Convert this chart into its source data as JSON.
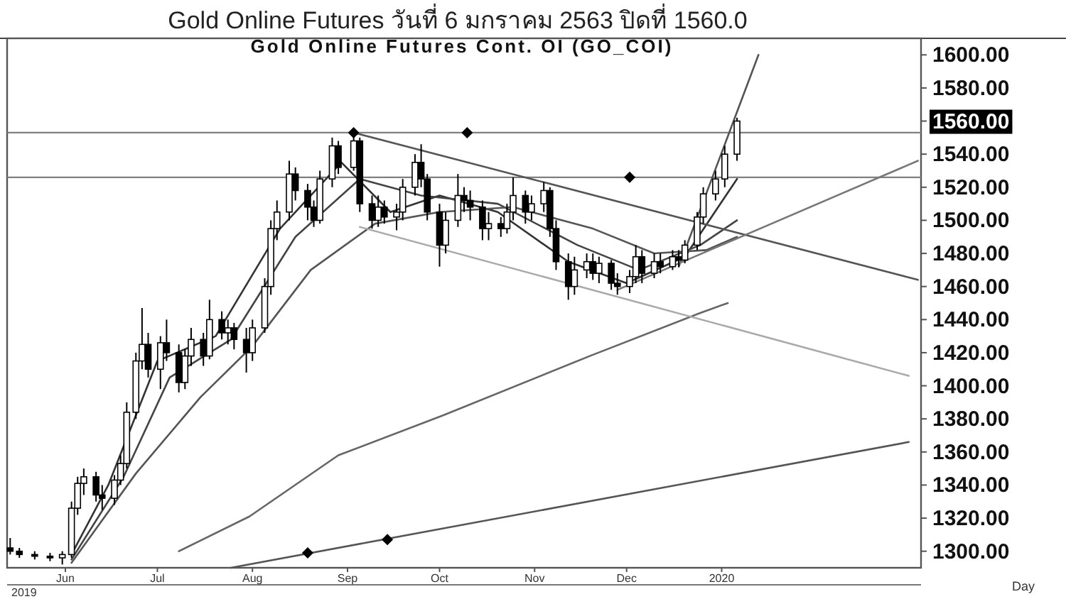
{
  "chart_data": {
    "type": "candlestick",
    "title": "Gold Online Futures วันที่   6 มกราคม   2563 ปิดที่   1560.0",
    "subtitle": "Gold Online Futures Cont. OI (GO_COI)",
    "x": [
      "2019-05-14",
      "2019-05-17",
      "2019-05-22",
      "2019-05-27",
      "2019-05-31",
      "2019-06-03",
      "2019-06-05",
      "2019-06-07",
      "2019-06-11",
      "2019-06-13",
      "2019-06-17",
      "2019-06-19",
      "2019-06-21",
      "2019-06-24",
      "2019-06-26",
      "2019-06-28",
      "2019-07-02",
      "2019-07-04",
      "2019-07-08",
      "2019-07-10",
      "2019-07-12",
      "2019-07-16",
      "2019-07-18",
      "2019-07-22",
      "2019-07-24",
      "2019-07-26",
      "2019-07-30",
      "2019-08-01",
      "2019-08-05",
      "2019-08-07",
      "2019-08-09",
      "2019-08-13",
      "2019-08-15",
      "2019-08-19",
      "2019-08-21",
      "2019-08-23",
      "2019-08-27",
      "2019-08-29",
      "2019-09-03",
      "2019-09-05",
      "2019-09-09",
      "2019-09-11",
      "2019-09-13",
      "2019-09-17",
      "2019-09-19",
      "2019-09-23",
      "2019-09-25",
      "2019-09-27",
      "2019-10-01",
      "2019-10-03",
      "2019-10-07",
      "2019-10-09",
      "2019-10-11",
      "2019-10-15",
      "2019-10-17",
      "2019-10-21",
      "2019-10-23",
      "2019-10-25",
      "2019-10-29",
      "2019-10-31",
      "2019-11-04",
      "2019-11-06",
      "2019-11-08",
      "2019-11-12",
      "2019-11-14",
      "2019-11-18",
      "2019-11-20",
      "2019-11-22",
      "2019-11-26",
      "2019-11-28",
      "2019-12-02",
      "2019-12-04",
      "2019-12-06",
      "2019-12-10",
      "2019-12-12",
      "2019-12-16",
      "2019-12-18",
      "2019-12-20",
      "2019-12-24",
      "2019-12-26",
      "2019-12-30",
      "2020-01-02",
      "2020-01-06"
    ],
    "ohlc": [
      [
        1302,
        1308,
        1298,
        1300
      ],
      [
        1300,
        1302,
        1296,
        1298
      ],
      [
        1298,
        1300,
        1295,
        1297
      ],
      [
        1297,
        1299,
        1294,
        1296
      ],
      [
        1296,
        1300,
        1292,
        1298
      ],
      [
        1298,
        1330,
        1296,
        1326
      ],
      [
        1326,
        1345,
        1322,
        1341
      ],
      [
        1341,
        1350,
        1334,
        1345
      ],
      [
        1345,
        1348,
        1330,
        1334
      ],
      [
        1334,
        1340,
        1325,
        1332
      ],
      [
        1332,
        1346,
        1328,
        1343
      ],
      [
        1343,
        1358,
        1340,
        1353
      ],
      [
        1353,
        1390,
        1350,
        1384
      ],
      [
        1384,
        1420,
        1380,
        1415
      ],
      [
        1415,
        1447,
        1410,
        1425
      ],
      [
        1425,
        1432,
        1405,
        1410
      ],
      [
        1410,
        1430,
        1398,
        1426
      ],
      [
        1426,
        1440,
        1415,
        1420
      ],
      [
        1420,
        1425,
        1396,
        1402
      ],
      [
        1402,
        1422,
        1398,
        1418
      ],
      [
        1418,
        1435,
        1412,
        1428
      ],
      [
        1428,
        1432,
        1412,
        1418
      ],
      [
        1418,
        1452,
        1416,
        1440
      ],
      [
        1440,
        1445,
        1428,
        1432
      ],
      [
        1432,
        1440,
        1425,
        1435
      ],
      [
        1435,
        1438,
        1422,
        1428
      ],
      [
        1428,
        1435,
        1408,
        1420
      ],
      [
        1420,
        1440,
        1415,
        1435
      ],
      [
        1435,
        1465,
        1432,
        1460
      ],
      [
        1460,
        1500,
        1455,
        1495
      ],
      [
        1495,
        1512,
        1488,
        1505
      ],
      [
        1505,
        1536,
        1500,
        1528
      ],
      [
        1528,
        1532,
        1512,
        1518
      ],
      [
        1518,
        1522,
        1500,
        1508
      ],
      [
        1508,
        1512,
        1496,
        1500
      ],
      [
        1500,
        1530,
        1498,
        1525
      ],
      [
        1525,
        1550,
        1520,
        1545
      ],
      [
        1545,
        1548,
        1528,
        1532
      ],
      [
        1532,
        1555,
        1530,
        1548
      ],
      [
        1548,
        1550,
        1505,
        1510
      ],
      [
        1510,
        1515,
        1495,
        1500
      ],
      [
        1500,
        1515,
        1496,
        1508
      ],
      [
        1508,
        1512,
        1498,
        1502
      ],
      [
        1502,
        1510,
        1494,
        1505
      ],
      [
        1505,
        1525,
        1500,
        1520
      ],
      [
        1520,
        1540,
        1515,
        1535
      ],
      [
        1535,
        1546,
        1520,
        1525
      ],
      [
        1525,
        1528,
        1500,
        1505
      ],
      [
        1505,
        1510,
        1472,
        1485
      ],
      [
        1485,
        1505,
        1480,
        1500
      ],
      [
        1500,
        1528,
        1496,
        1515
      ],
      [
        1515,
        1520,
        1505,
        1512
      ],
      [
        1512,
        1518,
        1500,
        1508
      ],
      [
        1508,
        1512,
        1488,
        1495
      ],
      [
        1495,
        1505,
        1488,
        1498
      ],
      [
        1498,
        1502,
        1490,
        1495
      ],
      [
        1495,
        1510,
        1492,
        1505
      ],
      [
        1505,
        1526,
        1500,
        1515
      ],
      [
        1515,
        1518,
        1498,
        1505
      ],
      [
        1505,
        1515,
        1500,
        1510
      ],
      [
        1510,
        1523,
        1505,
        1518
      ],
      [
        1518,
        1520,
        1490,
        1495
      ],
      [
        1495,
        1500,
        1470,
        1475
      ],
      [
        1475,
        1480,
        1452,
        1460
      ],
      [
        1460,
        1478,
        1455,
        1470
      ],
      [
        1470,
        1480,
        1465,
        1475
      ],
      [
        1475,
        1480,
        1464,
        1468
      ],
      [
        1468,
        1478,
        1462,
        1474
      ],
      [
        1474,
        1476,
        1458,
        1462
      ],
      [
        1462,
        1468,
        1455,
        1460
      ],
      [
        1460,
        1470,
        1456,
        1466
      ],
      [
        1466,
        1485,
        1462,
        1478
      ],
      [
        1478,
        1482,
        1462,
        1468
      ],
      [
        1468,
        1480,
        1465,
        1475
      ],
      [
        1475,
        1480,
        1468,
        1472
      ],
      [
        1472,
        1482,
        1470,
        1478
      ],
      [
        1478,
        1482,
        1472,
        1476
      ],
      [
        1476,
        1488,
        1474,
        1485
      ],
      [
        1485,
        1505,
        1482,
        1502
      ],
      [
        1502,
        1520,
        1498,
        1516
      ],
      [
        1516,
        1530,
        1512,
        1525
      ],
      [
        1525,
        1545,
        1520,
        1540
      ],
      [
        1540,
        1562,
        1536,
        1560
      ]
    ],
    "series": [
      {
        "type": "line",
        "color": "#333333",
        "x": [
          "2019-06-03",
          "2019-06-15",
          "2019-07-01",
          "2019-07-20",
          "2019-08-10",
          "2019-08-30",
          "2019-09-15",
          "2019-10-01",
          "2019-10-20",
          "2019-11-12",
          "2019-12-01",
          "2019-12-20",
          "2020-01-06"
        ],
        "values": [
          1298,
          1340,
          1415,
          1430,
          1495,
          1535,
          1505,
          1515,
          1505,
          1475,
          1462,
          1478,
          1525
        ]
      },
      {
        "type": "line",
        "color": "#444444",
        "x": [
          "2019-06-03",
          "2019-06-20",
          "2019-07-05",
          "2019-07-25",
          "2019-08-15",
          "2019-09-05",
          "2019-09-25",
          "2019-10-20",
          "2019-11-15",
          "2019-12-05",
          "2019-12-25",
          "2020-01-06"
        ],
        "values": [
          1295,
          1345,
          1405,
          1428,
          1490,
          1525,
          1515,
          1510,
          1485,
          1470,
          1485,
          1500
        ]
      },
      {
        "type": "line",
        "color": "#555555",
        "x": [
          "2019-06-03",
          "2019-06-24",
          "2019-07-15",
          "2019-08-01",
          "2019-08-20",
          "2019-09-10",
          "2019-10-01",
          "2019-10-25",
          "2019-11-20",
          "2019-12-10",
          "2019-12-27",
          "2020-01-06"
        ],
        "values": [
          1293,
          1347,
          1393,
          1424,
          1470,
          1498,
          1505,
          1508,
          1495,
          1480,
          1482,
          1490
        ]
      },
      {
        "type": "line",
        "color": "#666666",
        "x": [
          "2019-07-08",
          "2019-07-31",
          "2019-08-29",
          "2019-10-02",
          "2019-11-19",
          "2019-12-25",
          "2020-01-03"
        ],
        "values": [
          1300,
          1321,
          1358,
          1382,
          1418,
          1444,
          1450
        ]
      },
      {
        "type": "line",
        "color": "#555555",
        "x": [
          "2019-09-03",
          "2020-03-05"
        ],
        "values": [
          1553,
          1464
        ]
      },
      {
        "type": "line",
        "color": "#aaaaaa",
        "x": [
          "2019-09-05",
          "2020-03-02"
        ],
        "values": [
          1496,
          1406
        ]
      },
      {
        "type": "line",
        "color": "#555555",
        "x": [
          "2019-12-18",
          "2020-01-13"
        ],
        "values": [
          1472,
          1600
        ]
      },
      {
        "type": "line",
        "color": "#777777",
        "x": [
          "2019-11-28",
          "2020-03-05"
        ],
        "values": [
          1458,
          1536
        ]
      },
      {
        "type": "line",
        "color": "#555555",
        "x": [
          "2019-07-25",
          "2020-03-02"
        ],
        "values": [
          1290,
          1366
        ]
      },
      {
        "type": "scatter",
        "marker": "diamond",
        "color": "#000000",
        "x": [
          "2019-09-03",
          "2019-10-10",
          "2019-12-02",
          "2019-08-19",
          "2019-09-14"
        ],
        "values": [
          1553,
          1553,
          1526,
          1299,
          1307
        ]
      }
    ],
    "ref_lines": [
      {
        "axis": "y",
        "value": 1553,
        "color": "#808080"
      },
      {
        "axis": "y",
        "value": 1526,
        "color": "#808080"
      }
    ],
    "xlim": [
      "2019-05-13",
      "2020-03-06"
    ],
    "xticks": [
      {
        "value": "2019-06-01",
        "label": "Jun"
      },
      {
        "value": "2019-07-01",
        "label": "Jul"
      },
      {
        "value": "2019-08-01",
        "label": "Aug"
      },
      {
        "value": "2019-09-01",
        "label": "Sep"
      },
      {
        "value": "2019-10-01",
        "label": "Oct"
      },
      {
        "value": "2019-11-01",
        "label": "Nov"
      },
      {
        "value": "2019-12-01",
        "label": "Dec"
      },
      {
        "value": "2020-01-01",
        "label": "2020"
      }
    ],
    "ylim": [
      1290,
      1610
    ],
    "yticks": [
      {
        "value": 1300,
        "label": "1300.00"
      },
      {
        "value": 1320,
        "label": "1320.00"
      },
      {
        "value": 1340,
        "label": "1340.00"
      },
      {
        "value": 1360,
        "label": "1360.00"
      },
      {
        "value": 1380,
        "label": "1380.00"
      },
      {
        "value": 1400,
        "label": "1400.00"
      },
      {
        "value": 1420,
        "label": "1420.00"
      },
      {
        "value": 1440,
        "label": "1440.00"
      },
      {
        "value": 1460,
        "label": "1460.00"
      },
      {
        "value": 1480,
        "label": "1480.00"
      },
      {
        "value": 1500,
        "label": "1500.00"
      },
      {
        "value": 1520,
        "label": "1520.00"
      },
      {
        "value": 1540,
        "label": "1540.00"
      },
      {
        "value": 1560,
        "label": null
      },
      {
        "value": 1580,
        "label": "1580.00"
      },
      {
        "value": 1600,
        "label": "1600.00"
      }
    ],
    "annotations": [
      "1560.00",
      "2019",
      "Day"
    ],
    "grid": false
  }
}
